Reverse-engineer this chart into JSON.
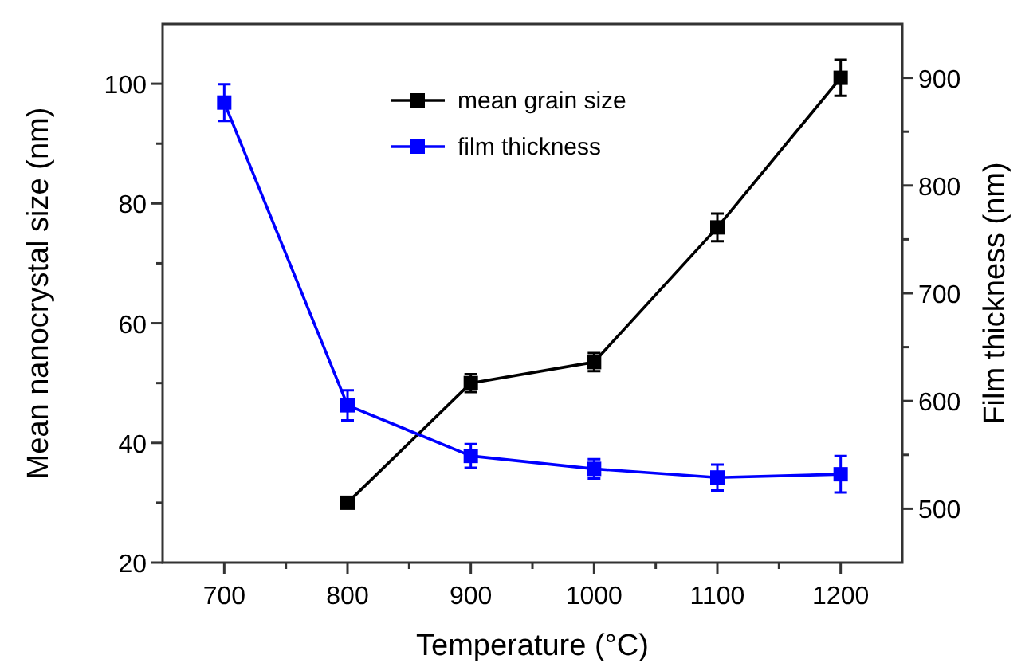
{
  "chart_data": {
    "type": "line",
    "xlabel": "Temperature (°C)",
    "ylabel": "Mean nanocrystal size (nm)",
    "y2label": "Film thickness (nm)",
    "x": [
      700,
      800,
      900,
      1000,
      1100,
      1200
    ],
    "xlim": [
      650,
      1250
    ],
    "xticks": [
      700,
      {
        "value": 750,
        "label": null
      },
      800,
      {
        "value": 850,
        "label": null
      },
      900,
      {
        "value": 950,
        "label": null
      },
      1000,
      {
        "value": 1050,
        "label": null
      },
      1100,
      {
        "value": 1150,
        "label": null
      },
      1200
    ],
    "ylim": [
      20,
      110
    ],
    "yticks": [
      20,
      {
        "value": 30,
        "label": null
      },
      40,
      {
        "value": 50,
        "label": null
      },
      60,
      {
        "value": 70,
        "label": null
      },
      80,
      {
        "value": 90,
        "label": null
      },
      100
    ],
    "y2lim": [
      450,
      950
    ],
    "y2ticks": [
      500,
      {
        "value": 550,
        "label": null
      },
      600,
      {
        "value": 650,
        "label": null
      },
      700,
      {
        "value": 750,
        "label": null
      },
      800,
      {
        "value": 850,
        "label": null
      },
      900
    ],
    "series": [
      {
        "name": "mean grain size",
        "color": "#000000",
        "values": [
          null,
          30,
          50,
          53.5,
          76,
          101
        ],
        "errors": [
          null,
          0.5,
          1.5,
          1.5,
          2.3,
          3
        ]
      },
      {
        "name": "film thickness",
        "color": "#0000ff",
        "axis": "y2",
        "values": [
          877,
          596,
          549,
          537,
          529,
          532
        ],
        "errors": [
          17,
          14,
          11,
          9,
          12,
          17
        ]
      }
    ],
    "marker": "square",
    "line_style": "solid",
    "legend": "top",
    "grid": false
  }
}
